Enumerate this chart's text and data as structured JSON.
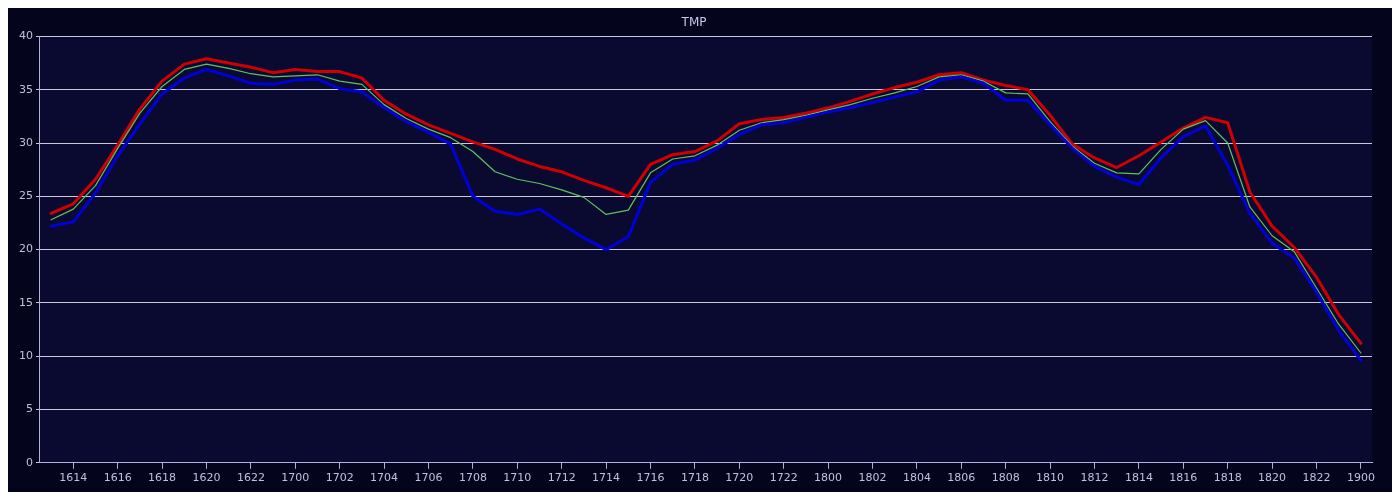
{
  "chart_data": {
    "type": "line",
    "title": "TMP",
    "categories": [
      null,
      "1614",
      null,
      "1616",
      null,
      "1618",
      null,
      "1620",
      null,
      "1622",
      null,
      "1700",
      null,
      "1702",
      null,
      "1704",
      null,
      "1706",
      null,
      "1708",
      null,
      "1710",
      null,
      "1712",
      null,
      "1714",
      null,
      "1716",
      null,
      "1718",
      null,
      "1720",
      null,
      "1722",
      null,
      "1800",
      null,
      "1802",
      null,
      "1804",
      null,
      "1806",
      null,
      "1808",
      null,
      "1810",
      null,
      "1812",
      null,
      "1814",
      null,
      "1816",
      null,
      "1818",
      null,
      "1820",
      null,
      "1822",
      null,
      "1900"
    ],
    "series": [
      {
        "color": "#0000d8",
        "values": [
          22.2,
          22.6,
          25.3,
          28.8,
          31.8,
          34.6,
          36.1,
          36.9,
          36.3,
          35.6,
          35.5,
          35.9,
          36.0,
          35.1,
          34.8,
          33.3,
          32.0,
          31.0,
          29.9,
          25.0,
          23.6,
          23.3,
          23.8,
          22.4,
          21.1,
          20.0,
          21.2,
          26.3,
          28.0,
          28.4,
          29.5,
          30.8,
          31.7,
          31.9,
          32.4,
          32.9,
          33.3,
          33.8,
          34.3,
          34.8,
          35.9,
          36.2,
          35.6,
          34.0,
          34.0,
          31.7,
          29.5,
          27.8,
          26.8,
          26.1,
          28.6,
          30.6,
          31.6,
          27.9,
          23.4,
          20.6,
          19.2,
          16.0,
          12.4,
          9.6
        ]
      },
      {
        "color": "#60c060",
        "values": [
          22.8,
          23.8,
          26.0,
          29.5,
          32.8,
          35.3,
          36.9,
          37.4,
          37.0,
          36.5,
          36.2,
          36.3,
          36.4,
          35.8,
          35.5,
          33.6,
          32.3,
          31.3,
          30.5,
          29.2,
          27.3,
          26.6,
          26.2,
          25.6,
          24.9,
          23.3,
          23.7,
          27.2,
          28.5,
          28.8,
          29.8,
          31.2,
          31.9,
          32.2,
          32.6,
          33.1,
          33.6,
          34.2,
          34.7,
          35.3,
          36.2,
          36.4,
          35.8,
          34.7,
          34.6,
          32.0,
          29.7,
          28.1,
          27.2,
          27.1,
          29.4,
          31.3,
          32.1,
          30.0,
          24.0,
          21.3,
          19.8,
          16.4,
          13.0,
          10.3
        ]
      },
      {
        "color": "#d00000",
        "values": [
          23.4,
          24.3,
          26.6,
          29.8,
          33.2,
          35.8,
          37.4,
          37.9,
          37.5,
          37.1,
          36.6,
          36.9,
          36.7,
          36.7,
          36.1,
          34.0,
          32.7,
          31.7,
          30.9,
          30.1,
          29.4,
          28.5,
          27.8,
          27.3,
          26.5,
          25.8,
          25.0,
          28.0,
          28.9,
          29.2,
          30.2,
          31.8,
          32.2,
          32.4,
          32.8,
          33.3,
          33.9,
          34.6,
          35.2,
          35.7,
          36.4,
          36.6,
          35.9,
          35.4,
          35.0,
          32.6,
          29.9,
          28.6,
          27.7,
          28.8,
          30.1,
          31.4,
          32.4,
          31.9,
          25.4,
          22.2,
          20.2,
          17.4,
          13.9,
          11.2
        ]
      }
    ],
    "ylim": [
      0,
      40
    ],
    "yticks": [
      0,
      5,
      10,
      15,
      20,
      25,
      30,
      35,
      40
    ],
    "grid": "y",
    "legend": false,
    "marker": "none",
    "line_style": "solid"
  }
}
